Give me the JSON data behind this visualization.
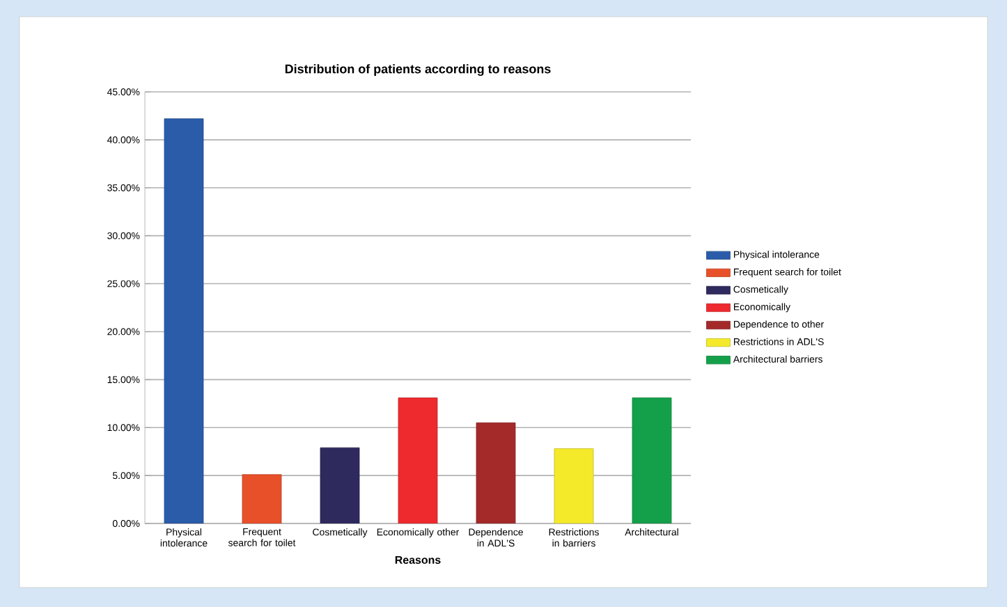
{
  "chart_data": {
    "type": "bar",
    "title": "Distribution of patients according to reasons",
    "xlabel": "Reasons",
    "categories": [
      "Physical intolerance",
      "Frequent search for toilet",
      "Cosmetically",
      "Economically other",
      "Dependence in ADL'S",
      "Restrictions in barriers",
      "Architectural"
    ],
    "series": [
      {
        "name": "Physical intolerance",
        "color": "#2a5caa",
        "values": [
          42.2,
          null,
          null,
          null,
          null,
          null,
          null
        ]
      },
      {
        "name": "Frequent search for toilet",
        "color": "#e8502a",
        "values": [
          null,
          5.1,
          null,
          null,
          null,
          null,
          null
        ]
      },
      {
        "name": "Cosmetically",
        "color": "#2e2a5e",
        "values": [
          null,
          null,
          7.9,
          null,
          null,
          null,
          null
        ]
      },
      {
        "name": "Economically",
        "color": "#ee2a2e",
        "values": [
          null,
          null,
          null,
          13.1,
          null,
          null,
          null
        ]
      },
      {
        "name": "Dependence to other",
        "color": "#a42a2a",
        "values": [
          null,
          null,
          null,
          null,
          10.5,
          null,
          null
        ]
      },
      {
        "name": "Restrictions in ADL'S",
        "color": "#f4ea2a",
        "values": [
          null,
          null,
          null,
          null,
          null,
          7.8,
          null
        ]
      },
      {
        "name": "Architectural barriers",
        "color": "#14a04a",
        "values": [
          null,
          null,
          null,
          null,
          null,
          null,
          13.1
        ]
      }
    ],
    "ylim": [
      0,
      45
    ],
    "yticks": [
      {
        "value": 0,
        "label": "0.00%"
      },
      {
        "value": 5,
        "label": "5.00%"
      },
      {
        "value": 10,
        "label": "10.00%"
      },
      {
        "value": 15,
        "label": "15.00%"
      },
      {
        "value": 20,
        "label": "20.00%"
      },
      {
        "value": 25,
        "label": "25.00%"
      },
      {
        "value": 30,
        "label": "30.00%"
      },
      {
        "value": 35,
        "label": "35.00%"
      },
      {
        "value": 40,
        "label": "40.00%"
      },
      {
        "value": 45,
        "label": "45.00%"
      }
    ],
    "grid": "y",
    "legend": "right"
  }
}
